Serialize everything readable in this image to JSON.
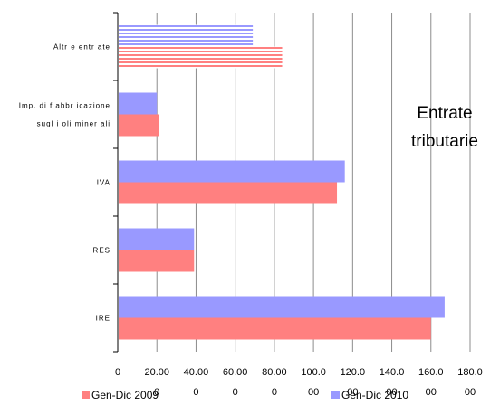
{
  "chart_data": {
    "type": "bar",
    "orientation": "horizontal",
    "title_lines": [
      "Entrate",
      "tributarie"
    ],
    "categories": [
      "IRE",
      "IRES",
      "IVA",
      "Imp. di fabbricazione\nsugli oli minerali",
      "Altre entrate"
    ],
    "category_label_lines": [
      [
        "IRE"
      ],
      [
        "IRES"
      ],
      [
        "IVA"
      ],
      [
        "Imp. di f abbr icazione",
        "sugl i oli miner ali"
      ],
      [
        "Altr e entr ate"
      ]
    ],
    "series": [
      {
        "name": "Gen-Dic 2009",
        "values": [
          160,
          39,
          112,
          21,
          84
        ],
        "color": "#ff8080",
        "pattern": "solid"
      },
      {
        "name": "Gen-Dic 2010",
        "values": [
          167,
          39,
          116,
          20,
          69
        ],
        "color": "#9999ff",
        "pattern": "solid"
      }
    ],
    "pattern_category_index": 4,
    "xlim": [
      0,
      180
    ],
    "x_ticks": [
      0,
      20,
      40,
      60,
      80,
      100,
      120,
      140,
      160,
      180
    ],
    "x_tick_labels": [
      [
        "0"
      ],
      [
        "20.00",
        "0"
      ],
      [
        "40.00",
        "0"
      ],
      [
        "60.00",
        "0"
      ],
      [
        "80.00",
        "0"
      ],
      [
        "100.0",
        "00"
      ],
      [
        "120.0",
        "00"
      ],
      [
        "140.0",
        "00"
      ],
      [
        "160.0",
        "00"
      ],
      [
        "180.0",
        "00"
      ]
    ],
    "grid": true,
    "legend_position": "bottom"
  }
}
